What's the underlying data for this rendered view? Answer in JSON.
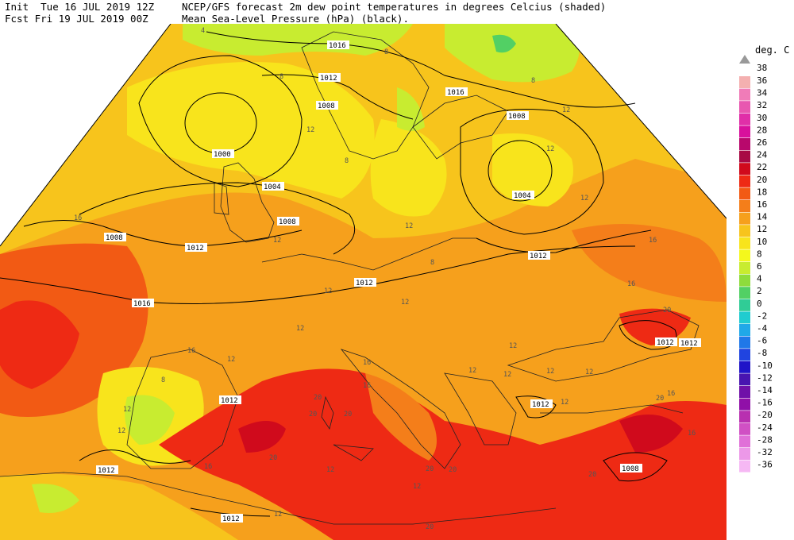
{
  "header": {
    "init_line": "Init  Tue 16 JUL 2019 12Z",
    "fcst_line": "Fcst Fri 19 JUL 2019 00Z",
    "title_line1": "NCEP/GFS forecast 2m dew point temperatures in degrees Celcius (shaded)",
    "title_line2": "Mean Sea-Level Pressure (hPa) (black)."
  },
  "colorbar": {
    "unit": "deg. C",
    "top_value": "38",
    "levels": [
      {
        "label": "36",
        "color": "#f4b0b0"
      },
      {
        "label": "34",
        "color": "#f07cb8"
      },
      {
        "label": "32",
        "color": "#e857b0"
      },
      {
        "label": "30",
        "color": "#e02fa8"
      },
      {
        "label": "28",
        "color": "#d8109c"
      },
      {
        "label": "26",
        "color": "#b8086c"
      },
      {
        "label": "24",
        "color": "#a80a44"
      },
      {
        "label": "22",
        "color": "#d00a1c"
      },
      {
        "label": "20",
        "color": "#ee2a14"
      },
      {
        "label": "18",
        "color": "#f25a14"
      },
      {
        "label": "16",
        "color": "#f47e1a"
      },
      {
        "label": "14",
        "color": "#f6a01c"
      },
      {
        "label": "12",
        "color": "#f7c41c"
      },
      {
        "label": "10",
        "color": "#f8e41c"
      },
      {
        "label": "8",
        "color": "#f4f81c"
      },
      {
        "label": "6",
        "color": "#c8ec30"
      },
      {
        "label": "4",
        "color": "#8edc3c"
      },
      {
        "label": "2",
        "color": "#52d064"
      },
      {
        "label": "0",
        "color": "#30cc96"
      },
      {
        "label": "-2",
        "color": "#20ccd0"
      },
      {
        "label": "-4",
        "color": "#20a8e8"
      },
      {
        "label": "-6",
        "color": "#2078e8"
      },
      {
        "label": "-8",
        "color": "#2044e0"
      },
      {
        "label": "-10",
        "color": "#2014c8"
      },
      {
        "label": "-12",
        "color": "#4814b0"
      },
      {
        "label": "-14",
        "color": "#7010a8"
      },
      {
        "label": "-16",
        "color": "#9010a8"
      },
      {
        "label": "-20",
        "color": "#b830b0"
      },
      {
        "label": "-24",
        "color": "#d050c4"
      },
      {
        "label": "-28",
        "color": "#e070d8"
      },
      {
        "label": "-32",
        "color": "#ec98e8"
      },
      {
        "label": "-36",
        "color": "#f6b8f4"
      }
    ]
  },
  "isobar_labels": [
    "1016",
    "1012",
    "1008",
    "1000",
    "1004",
    "1008",
    "1012",
    "1016",
    "1016",
    "1008",
    "1004",
    "1008",
    "1012",
    "1012",
    "1012",
    "1012",
    "1012",
    "1008",
    "1012",
    "1012",
    "1012"
  ],
  "dewpoint_labels": [
    "4",
    "8",
    "8",
    "8",
    "12",
    "12",
    "8",
    "12",
    "12",
    "16",
    "16",
    "12",
    "12",
    "8",
    "12",
    "12",
    "12",
    "12",
    "16",
    "12",
    "12",
    "16",
    "8",
    "12",
    "12",
    "12",
    "16",
    "16",
    "12",
    "12",
    "20",
    "20",
    "20",
    "20",
    "20",
    "20",
    "16",
    "12",
    "12",
    "20",
    "20",
    "20",
    "16",
    "16",
    "20",
    "12",
    "12"
  ]
}
